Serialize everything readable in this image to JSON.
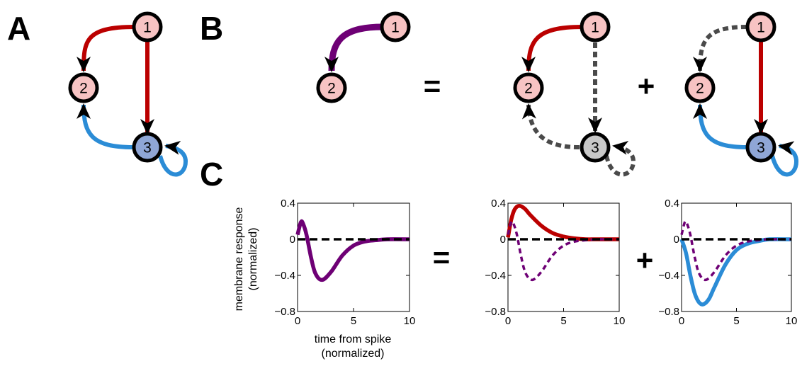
{
  "panels": {
    "a": "A",
    "b": "B",
    "c": "C"
  },
  "operators": {
    "equals": "=",
    "plus": "+"
  },
  "nodes": {
    "n1": "1",
    "n2": "2",
    "n3": "3"
  },
  "colors": {
    "red": "#bb0000",
    "blue": "#2b8cd6",
    "purple": "#6e0075",
    "gray": "#4a4a4a",
    "node_pink": "#f7c3c3",
    "node_blue": "#8fa6d6",
    "node_gray": "#c8c8c8"
  },
  "plots": {
    "ylabel_line1": "membrane response",
    "ylabel_line2": "(normalized)",
    "xlabel_line1": "time from spike",
    "xlabel_line2": "(normalized)",
    "xticks": [
      "0",
      "5",
      "10"
    ],
    "yticks": [
      "0.4",
      "0",
      "−0.4",
      "−0.8"
    ]
  },
  "chart_data": [
    {
      "type": "line",
      "xlim": [
        0,
        10
      ],
      "ylim": [
        -0.8,
        0.4
      ],
      "series": [
        {
          "style": "solid",
          "color": "purple",
          "x": [
            0,
            0.3,
            0.5,
            0.8,
            1.2,
            1.6,
            2.2,
            3,
            4,
            5,
            6,
            7,
            8,
            10
          ],
          "y": [
            0.05,
            0.19,
            0.17,
            0.05,
            -0.2,
            -0.38,
            -0.45,
            -0.36,
            -0.18,
            -0.07,
            -0.025,
            -0.01,
            0,
            0
          ]
        },
        {
          "style": "dashed",
          "color": "black",
          "x": [
            0,
            10
          ],
          "y": [
            0,
            0
          ]
        }
      ]
    },
    {
      "type": "line",
      "xlim": [
        0,
        10
      ],
      "ylim": [
        -0.8,
        0.4
      ],
      "series": [
        {
          "style": "solid",
          "color": "red",
          "x": [
            0,
            0.3,
            0.6,
            1,
            1.5,
            2,
            3,
            4,
            5,
            6,
            7,
            8,
            10
          ],
          "y": [
            0.02,
            0.22,
            0.33,
            0.37,
            0.34,
            0.27,
            0.15,
            0.07,
            0.03,
            0.01,
            0,
            0,
            0
          ]
        },
        {
          "style": "dashed",
          "color": "purple",
          "x": [
            0,
            0.3,
            0.5,
            0.8,
            1.2,
            1.6,
            2.2,
            3,
            4,
            5,
            6,
            7,
            8,
            10
          ],
          "y": [
            0.05,
            0.19,
            0.17,
            0.05,
            -0.2,
            -0.38,
            -0.45,
            -0.36,
            -0.18,
            -0.07,
            -0.025,
            -0.01,
            0,
            0
          ]
        },
        {
          "style": "dashed",
          "color": "black",
          "x": [
            0,
            10
          ],
          "y": [
            0,
            0
          ]
        }
      ]
    },
    {
      "type": "line",
      "xlim": [
        0,
        10
      ],
      "ylim": [
        -0.8,
        0.4
      ],
      "series": [
        {
          "style": "solid",
          "color": "blue",
          "x": [
            0,
            0.4,
            0.8,
            1.2,
            1.6,
            2,
            2.5,
            3,
            4,
            5,
            6,
            7,
            8,
            10
          ],
          "y": [
            0,
            -0.15,
            -0.4,
            -0.6,
            -0.7,
            -0.72,
            -0.66,
            -0.53,
            -0.28,
            -0.12,
            -0.05,
            -0.02,
            0,
            0
          ]
        },
        {
          "style": "dashed",
          "color": "purple",
          "x": [
            0,
            0.3,
            0.5,
            0.8,
            1.2,
            1.6,
            2.2,
            3,
            4,
            5,
            6,
            7,
            8,
            10
          ],
          "y": [
            0.05,
            0.19,
            0.17,
            0.05,
            -0.2,
            -0.38,
            -0.45,
            -0.36,
            -0.18,
            -0.07,
            -0.025,
            -0.01,
            0,
            0
          ]
        },
        {
          "style": "dashed",
          "color": "black",
          "x": [
            0,
            10
          ],
          "y": [
            0,
            0
          ]
        }
      ]
    }
  ]
}
